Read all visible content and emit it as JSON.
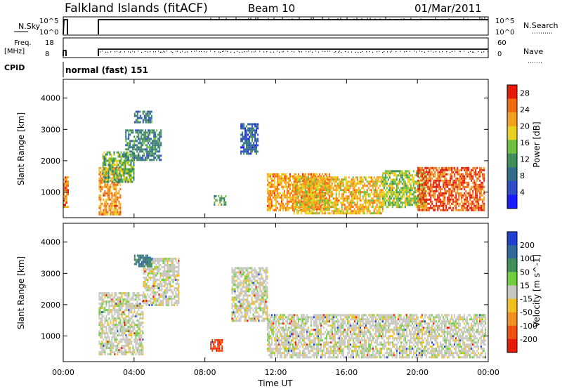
{
  "header": {
    "station": "Falkland Islands (fitACF)",
    "beam": "Beam 10",
    "date": "01/Mar/2011"
  },
  "top_panels": {
    "nsky_label": "N.Sky",
    "nsky_ticks": [
      "10^5",
      "10^0"
    ],
    "nsearch_label": "N.Search",
    "nsearch_ticks": [
      "10^5",
      "10^0"
    ],
    "freq_label_1": "Freq.",
    "freq_label_2": "[MHz]",
    "freq_ticks": [
      "18",
      "8"
    ],
    "nave_label": "Nave",
    "nave_ticks": [
      "60",
      "0"
    ],
    "cpid_label": "CPID",
    "cpid_value": "normal (fast) 151"
  },
  "chart_data": [
    {
      "type": "heatmap",
      "title": "",
      "xlabel": "Time UT",
      "ylabel": "Slant Range [km]",
      "xlim": [
        0,
        24
      ],
      "ylim": [
        180,
        4600
      ],
      "x_ticks": [
        "00:00",
        "04:00",
        "08:00",
        "12:00",
        "16:00",
        "20:00",
        "00:00"
      ],
      "y_ticks": [
        1000,
        2000,
        3000,
        4000
      ],
      "colorbar": {
        "label": "Power [dB]",
        "ticks": [
          4,
          8,
          12,
          16,
          20,
          24,
          28
        ],
        "range": [
          0,
          30
        ],
        "colors": [
          "#1a1aff",
          "#2e4dc8",
          "#2f6f8a",
          "#3f8f5a",
          "#6fbf3f",
          "#e8d020",
          "#f4a020",
          "#f06a10",
          "#e81a08"
        ]
      },
      "regions": [
        {
          "t0": 0.0,
          "t1": 0.25,
          "r0": 500,
          "r1": 1500,
          "v": 24
        },
        {
          "t0": 2.0,
          "t1": 3.2,
          "r0": 300,
          "r1": 1800,
          "v": 22
        },
        {
          "t0": 2.2,
          "t1": 4.0,
          "r0": 1300,
          "r1": 2300,
          "v": 14
        },
        {
          "t0": 3.5,
          "t1": 5.5,
          "r0": 2000,
          "r1": 3000,
          "v": 10
        },
        {
          "t0": 4.0,
          "t1": 5.0,
          "r0": 3200,
          "r1": 3600,
          "v": 9
        },
        {
          "t0": 8.5,
          "t1": 9.2,
          "r0": 600,
          "r1": 900,
          "v": 12
        },
        {
          "t0": 10.0,
          "t1": 11.0,
          "r0": 2200,
          "r1": 3200,
          "v": 7
        },
        {
          "t0": 11.5,
          "t1": 15.0,
          "r0": 400,
          "r1": 1600,
          "v": 22
        },
        {
          "t0": 13.0,
          "t1": 18.0,
          "r0": 300,
          "r1": 1500,
          "v": 20
        },
        {
          "t0": 18.0,
          "t1": 20.5,
          "r0": 500,
          "r1": 1700,
          "v": 16
        },
        {
          "t0": 20.0,
          "t1": 23.8,
          "r0": 400,
          "r1": 1800,
          "v": 26
        }
      ]
    },
    {
      "type": "heatmap",
      "title": "",
      "xlabel": "Time UT",
      "ylabel": "Slant Range [km]",
      "xlim": [
        0,
        24
      ],
      "ylim": [
        180,
        4600
      ],
      "x_ticks": [
        "00:00",
        "04:00",
        "08:00",
        "12:00",
        "16:00",
        "20:00",
        "00:00"
      ],
      "y_ticks": [
        1000,
        2000,
        3000,
        4000
      ],
      "colorbar": {
        "label": "Velocity [m s^-1]",
        "ticks": [
          "200",
          "100",
          "50",
          "15",
          "-15",
          "-50",
          "-100",
          "-200"
        ],
        "colors": [
          "#1f3fd0",
          "#2f6a9a",
          "#3f8f5a",
          "#6fcf3f",
          "#c8c8c0",
          "#f0c020",
          "#f09020",
          "#f05010",
          "#e81a08"
        ]
      },
      "regions": [
        {
          "t0": 2.0,
          "t1": 4.5,
          "r0": 400,
          "r1": 2400,
          "v": 0
        },
        {
          "t0": 4.5,
          "t1": 6.5,
          "r0": 2000,
          "r1": 3500,
          "v": 0
        },
        {
          "t0": 4.0,
          "t1": 5.0,
          "r0": 3200,
          "r1": 3600,
          "v": 80
        },
        {
          "t0": 8.3,
          "t1": 9.0,
          "r0": 500,
          "r1": 900,
          "v": -150
        },
        {
          "t0": 9.5,
          "t1": 11.5,
          "r0": 1500,
          "r1": 3200,
          "v": 0
        },
        {
          "t0": 11.5,
          "t1": 23.8,
          "r0": 300,
          "r1": 1700,
          "v": 0
        }
      ]
    }
  ]
}
